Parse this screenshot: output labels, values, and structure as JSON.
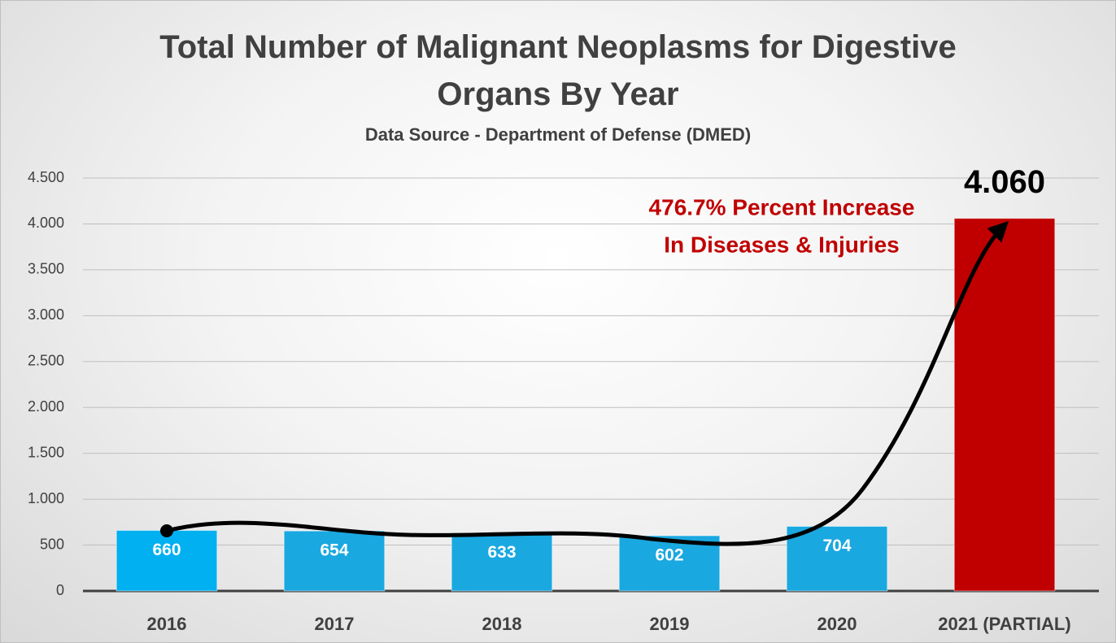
{
  "chart_data": {
    "type": "bar",
    "title": "Total Number of Malignant Neoplasms for Digestive Organs By Year",
    "subtitle": "Data Source - Department of Defense (DMED)",
    "categories": [
      "2016",
      "2017",
      "2018",
      "2019",
      "2020",
      "2021 (PARTIAL)"
    ],
    "values": [
      660,
      654,
      633,
      602,
      704,
      4060
    ],
    "value_labels": [
      "660",
      "654",
      "633",
      "602",
      "704",
      "4.060"
    ],
    "colors": [
      "#00b0f0",
      "#1aa8e0",
      "#1aa8e0",
      "#1aa8e0",
      "#1aa8e0",
      "#c00000"
    ],
    "annotations": [
      "476.7% Percent Increase",
      "In Diseases & Injuries"
    ],
    "ylim": [
      0,
      4500
    ],
    "yticks": [
      0,
      500,
      {
        "value": 1000,
        "label": "1.000"
      },
      {
        "value": 1500,
        "label": "1.500"
      },
      {
        "value": 2000,
        "label": "2.000"
      },
      {
        "value": 2500,
        "label": "2.500"
      },
      {
        "value": 3000,
        "label": "3.000"
      },
      {
        "value": 3500,
        "label": "3.500"
      },
      {
        "value": 4000,
        "label": "4.000"
      },
      {
        "value": 4500,
        "label": "4.500"
      }
    ],
    "grid": true
  }
}
